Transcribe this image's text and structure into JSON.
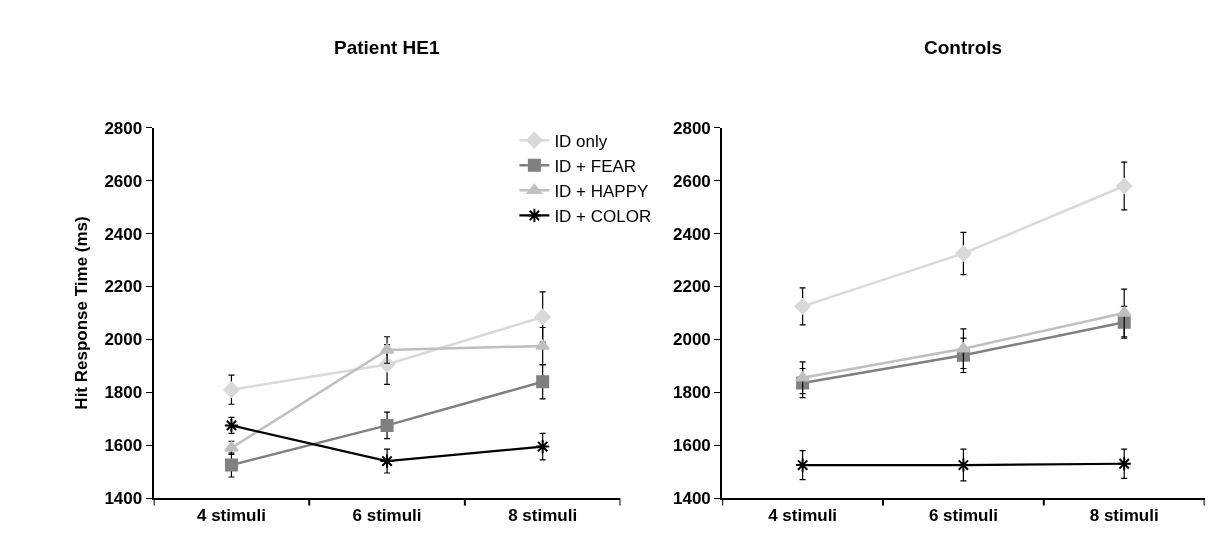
{
  "chart_data": [
    {
      "type": "line",
      "title": "Patient HE1",
      "ylabel": "Hit Response Time (ms)",
      "categories": [
        "4 stimuli",
        "6 stimuli",
        "8 stimuli"
      ],
      "ylim": [
        1400,
        2800
      ],
      "yticks": [
        1400,
        1600,
        1800,
        2000,
        2200,
        2400,
        2600,
        2800
      ],
      "grid": false,
      "legend": "top right",
      "series": [
        {
          "name": "ID only",
          "color": "#d9d9d9",
          "marker": "diamond",
          "values": [
            1810,
            1905,
            2085
          ],
          "errors": [
            55,
            75,
            95
          ]
        },
        {
          "name": "ID + FEAR",
          "color": "#808080",
          "marker": "square",
          "values": [
            1525,
            1675,
            1840
          ],
          "errors": [
            45,
            50,
            65
          ]
        },
        {
          "name": "ID + HAPPY",
          "color": "#bfbfbf",
          "marker": "triangle",
          "values": [
            1590,
            1960,
            1975
          ],
          "errors": [
            25,
            50,
            70
          ]
        },
        {
          "name": "ID + COLOR",
          "color": "#000000",
          "marker": "cross",
          "values": [
            1675,
            1540,
            1595
          ],
          "errors": [
            30,
            45,
            50
          ]
        }
      ]
    },
    {
      "type": "line",
      "title": "Controls",
      "categories": [
        "4 stimuli",
        "6 stimuli",
        "8 stimuli"
      ],
      "ylim": [
        1400,
        2800
      ],
      "yticks": [
        1400,
        1600,
        1800,
        2000,
        2200,
        2400,
        2600,
        2800
      ],
      "grid": false,
      "legend": false,
      "series": [
        {
          "color": "#d9d9d9",
          "marker": "diamond",
          "values": [
            2125,
            2325,
            2580
          ],
          "errors": [
            70,
            80,
            90
          ]
        },
        {
          "color": "#808080",
          "marker": "square",
          "values": [
            1835,
            1940,
            2065
          ],
          "errors": [
            55,
            65,
            60
          ]
        },
        {
          "color": "#bfbfbf",
          "marker": "triangle",
          "values": [
            1855,
            1965,
            2100
          ],
          "errors": [
            60,
            75,
            90
          ]
        },
        {
          "color": "#000000",
          "marker": "cross",
          "values": [
            1525,
            1525,
            1530
          ],
          "errors": [
            55,
            60,
            55
          ]
        }
      ]
    }
  ]
}
